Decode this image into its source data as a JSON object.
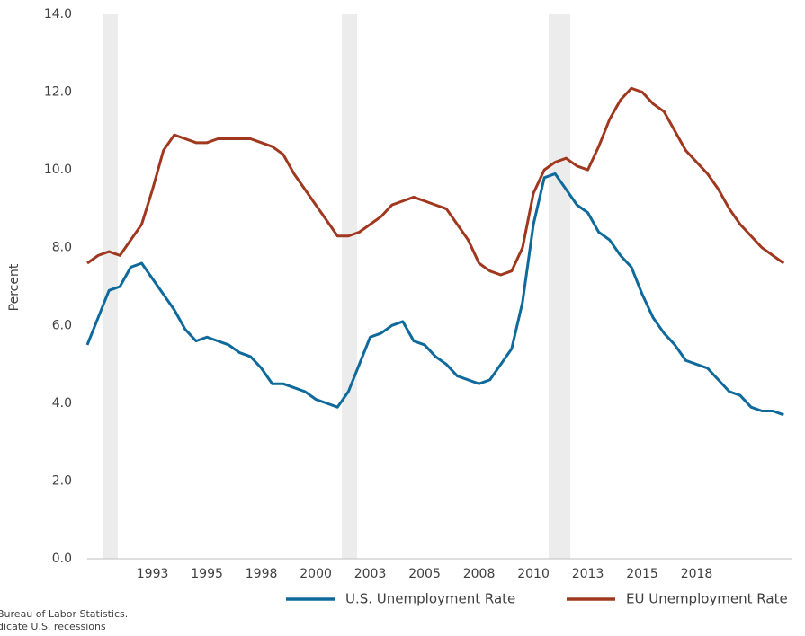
{
  "chart_data": {
    "type": "line",
    "ylabel": "Percent",
    "x": [
      1990,
      1990.5,
      1991,
      1991.5,
      1992,
      1992.5,
      1993,
      1993.5,
      1994,
      1994.5,
      1995,
      1995.5,
      1996,
      1996.5,
      1997,
      1997.5,
      1998,
      1998.5,
      1999,
      1999.5,
      2000,
      2000.5,
      2001,
      2001.5,
      2002,
      2002.5,
      2003,
      2003.5,
      2004,
      2004.5,
      2005,
      2005.5,
      2006,
      2006.5,
      2007,
      2007.5,
      2008,
      2008.5,
      2009,
      2009.5,
      2010,
      2010.5,
      2011,
      2011.5,
      2012,
      2012.5,
      2013,
      2013.5,
      2014,
      2014.5,
      2015,
      2015.5,
      2016,
      2016.5,
      2017,
      2017.5,
      2018,
      2018.5,
      2019,
      2019.5,
      2020,
      2020.5,
      2021,
      2021.5,
      2022
    ],
    "series": [
      {
        "name": "U.S. Unemployment Rate",
        "color": "#0f6a9c",
        "values": [
          5.5,
          6.2,
          6.9,
          7.0,
          7.5,
          7.6,
          7.2,
          6.8,
          6.4,
          5.9,
          5.6,
          5.7,
          5.6,
          5.5,
          5.3,
          5.2,
          4.9,
          4.5,
          4.5,
          4.4,
          4.3,
          4.1,
          4.0,
          3.9,
          4.3,
          5.0,
          5.7,
          5.8,
          6.0,
          6.1,
          5.6,
          5.5,
          5.2,
          5.0,
          4.7,
          4.6,
          4.5,
          4.6,
          5.0,
          5.4,
          6.6,
          8.6,
          9.8,
          9.9,
          9.5,
          9.1,
          8.9,
          8.4,
          8.2,
          7.8,
          7.5,
          6.8,
          6.2,
          5.8,
          5.5,
          5.1,
          5.0,
          4.9,
          4.6,
          4.3,
          4.2,
          3.9,
          3.8,
          3.8,
          3.7
        ]
      },
      {
        "name": "EU Unemployment Rate",
        "color": "#a0381f",
        "values": [
          7.6,
          7.8,
          7.9,
          7.8,
          8.2,
          8.6,
          9.5,
          10.5,
          10.9,
          10.8,
          10.7,
          10.7,
          10.8,
          10.8,
          10.8,
          10.8,
          10.7,
          10.6,
          10.4,
          9.9,
          9.5,
          9.1,
          8.7,
          8.3,
          8.3,
          8.4,
          8.6,
          8.8,
          9.1,
          9.2,
          9.3,
          9.2,
          9.1,
          9.0,
          8.6,
          8.2,
          7.6,
          7.4,
          7.3,
          7.4,
          8.0,
          9.4,
          10.0,
          10.2,
          10.3,
          10.1,
          10.0,
          10.6,
          11.3,
          11.8,
          12.1,
          12.0,
          11.7,
          11.5,
          11.0,
          10.5,
          10.2,
          9.9,
          9.5,
          9.0,
          8.6,
          8.3,
          8.0,
          7.8,
          7.6
        ]
      }
    ],
    "recessions": [
      [
        1990.7,
        1991.4
      ],
      [
        2001.7,
        2002.4
      ],
      [
        2011.2,
        2012.2
      ]
    ],
    "recession_color": "#ececec",
    "xlim": [
      1990,
      2022.4
    ],
    "ylim": [
      0,
      14
    ],
    "xticks": [
      {
        "value": 1993,
        "label": "1993"
      },
      {
        "value": 1995.5,
        "label": "1995"
      },
      {
        "value": 1998,
        "label": "1998"
      },
      {
        "value": 2000.5,
        "label": "2000"
      },
      {
        "value": 2003,
        "label": "2003"
      },
      {
        "value": 2005.5,
        "label": "2005"
      },
      {
        "value": 2008,
        "label": "2008"
      },
      {
        "value": 2010.5,
        "label": "2010"
      },
      {
        "value": 2013,
        "label": "2013"
      },
      {
        "value": 2015.5,
        "label": "2015"
      },
      {
        "value": 2018,
        "label": "2018"
      }
    ],
    "yticks": [
      {
        "value": 0,
        "label": "0.0"
      },
      {
        "value": 2,
        "label": "2.0"
      },
      {
        "value": 4,
        "label": "4.0"
      },
      {
        "value": 6,
        "label": "6.0"
      },
      {
        "value": 8,
        "label": "8.0"
      },
      {
        "value": 10,
        "label": "10.0"
      },
      {
        "value": 12,
        "label": "12.0"
      },
      {
        "value": 14,
        "label": "14.0"
      }
    ],
    "notes": [
      "Bureau of Labor Statistics.",
      "dicate U.S. recessions"
    ]
  }
}
